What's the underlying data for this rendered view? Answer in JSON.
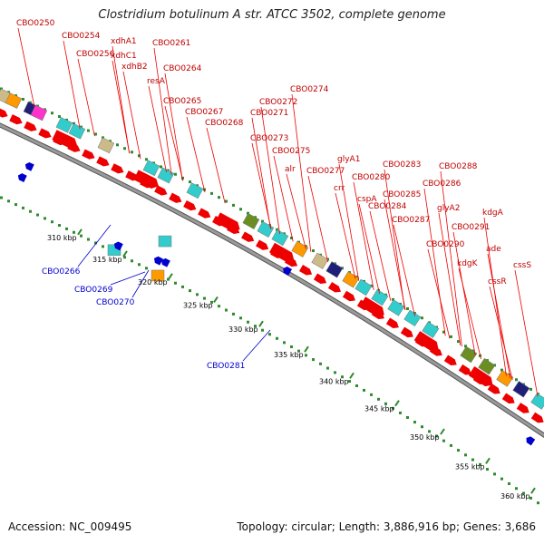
{
  "title": "Clostridium botulinum A str. ATCC 3502, complete genome",
  "footer": {
    "accession": "Accession: NC_009495",
    "summary": "Topology: circular; Length: 3,886,916 bp; Genes: 3,686"
  },
  "colors": {
    "forward_gene": "#ee0000",
    "reverse_gene": "#0000cc",
    "backbone": "#9a9a9a",
    "tick": "#2e8b2e",
    "cyan_feature": "#33cccc",
    "orange_feature": "#ff9900",
    "olive_feature": "#6b8e23",
    "navy_feature": "#1f1f7a",
    "magenta_feature": "#ff33cc",
    "khaki_feature": "#ccbb88"
  },
  "scale_labels": [
    "310 kbp",
    "315 kbp",
    "320 kbp",
    "325 kbp",
    "330 kbp",
    "335 kbp",
    "340 kbp",
    "345 kbp",
    "350 kbp",
    "355 kbp",
    "360 kbp"
  ],
  "forward_labels": [
    "CBO0250",
    "CBO0254",
    "CBO0256",
    "xdhA1",
    "xdhC1",
    "xdhB2",
    "CBO0261",
    "CBO0264",
    "resA",
    "CBO0265",
    "CBO0267",
    "CBO0268",
    "CBO0271",
    "CBO0272",
    "CBO0274",
    "CBO0273",
    "CBO0275",
    "alr",
    "CBO0277",
    "glyA1",
    "crr",
    "CBO0280",
    "CBO0283",
    "cspA",
    "CBO0284",
    "CBO0285",
    "CBO0286",
    "CBO0288",
    "CBO0287",
    "glyA2",
    "CBO0290",
    "CBO0291",
    "kdgA",
    "kdgK",
    "ade",
    "cssS",
    "cssR"
  ],
  "reverse_labels": [
    "CBO0266",
    "CBO0269",
    "CBO0270",
    "CBO0281"
  ]
}
